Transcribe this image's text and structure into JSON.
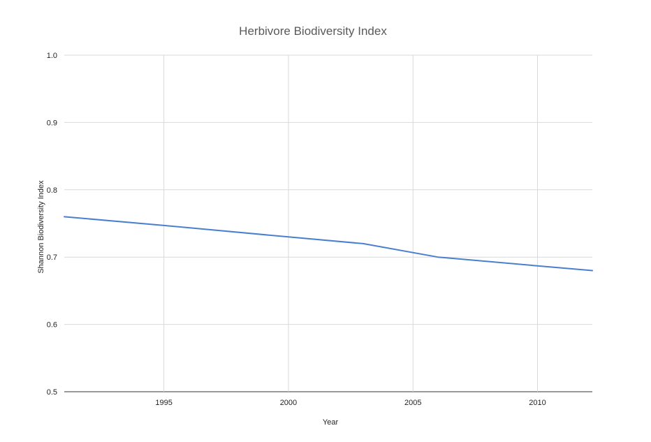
{
  "chart_data": {
    "type": "line",
    "title": "Herbivore Biodiversity Index",
    "xlabel": "Year",
    "ylabel": "Shannon Biodiversity Index",
    "xlim": [
      1991,
      2012.2
    ],
    "ylim": [
      0.5,
      1.0
    ],
    "x_ticks": [
      1995,
      2000,
      2005,
      2010
    ],
    "x_tick_labels": [
      "1995",
      "2000",
      "2005",
      "2010"
    ],
    "y_ticks": [
      0.5,
      0.6,
      0.7,
      0.8,
      0.9,
      1.0
    ],
    "y_tick_labels": [
      "0.5",
      "0.6",
      "0.7",
      "0.8",
      "0.9",
      "1.0"
    ],
    "grid": true,
    "legend": "none",
    "series": [
      {
        "color": "#4a7fd0",
        "x": [
          1991,
          1995,
          2000,
          2003,
          2006,
          2010,
          2012.2
        ],
        "y": [
          0.76,
          0.747,
          0.73,
          0.72,
          0.7,
          0.687,
          0.68
        ]
      }
    ]
  }
}
